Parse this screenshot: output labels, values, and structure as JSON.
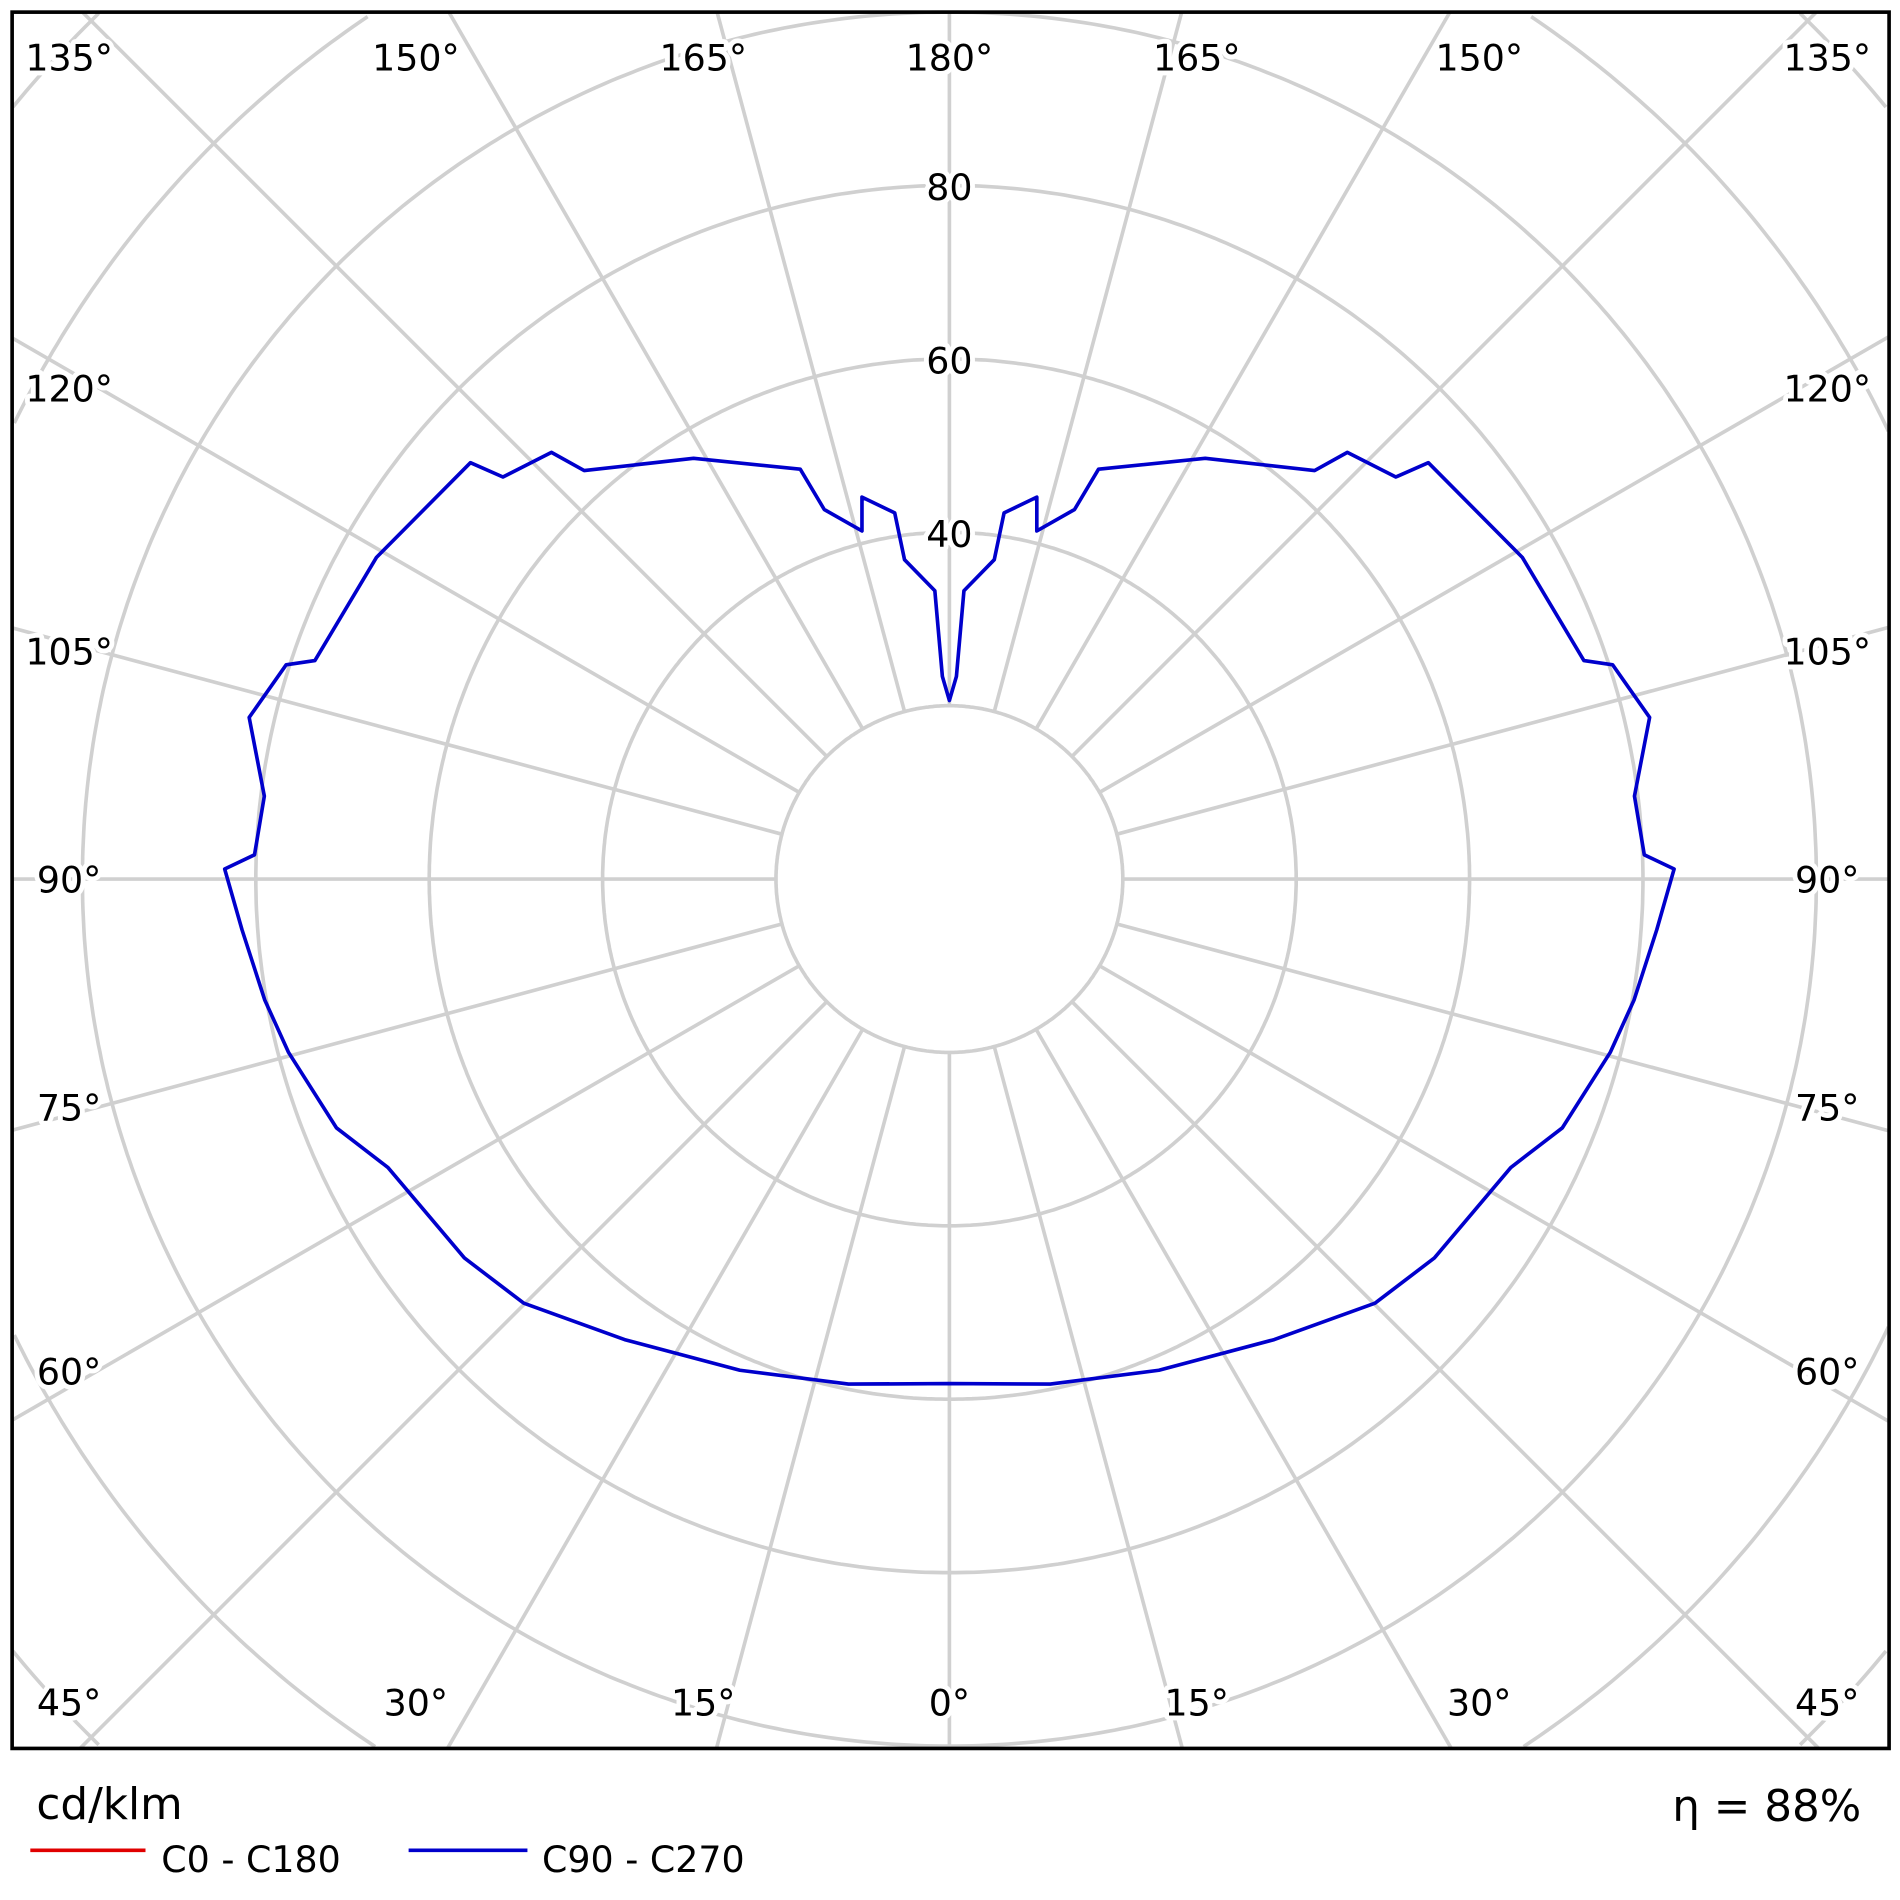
{
  "chart_data": {
    "type": "polar",
    "unit_label": "cd/klm",
    "efficiency_label": "η = 88%",
    "radial_ticks": [
      40,
      60,
      80
    ],
    "radial_grid_step": 20,
    "grid": true,
    "angle_labels_top": [
      "135°",
      "150°",
      "165°",
      "180°",
      "165°",
      "150°",
      "135°"
    ],
    "angle_labels_side": [
      "120°",
      "105°",
      "90°",
      "75°",
      "60°"
    ],
    "angle_labels_bottom": [
      "45°",
      "30°",
      "15°",
      "0°",
      "15°",
      "30°",
      "45°"
    ],
    "legend_position": "bottom-left",
    "series": [
      {
        "name": "C0 - C180",
        "color": "#e00000",
        "gamma": [],
        "values": []
      },
      {
        "name": "C90 - C270",
        "color": "#0000cc",
        "symmetric": true,
        "gamma": [
          0,
          11.3,
          23.1,
          35.2,
          45.1,
          52,
          62.8,
          67.9,
          75.3,
          80,
          85.9,
          90.8,
          92,
          96.9,
          103,
          107.9,
          109,
          119.3,
          131,
          132,
          137,
          138.2,
          148.7,
          160,
          161.3,
          165.9,
          167.1,
          171.5,
          172,
          177.1,
          178,
          180
        ],
        "values": [
          58.2,
          59.4,
          61.6,
          65.0,
          69.3,
          71.0,
          72.8,
          76.3,
          78.8,
          80.2,
          81.8,
          83.6,
          80.2,
          79.6,
          82.9,
          80.4,
          77.4,
          75.8,
          73.2,
          69.3,
          67.3,
          63.2,
          56.8,
          50.3,
          45.0,
          41.4,
          45.2,
          42.7,
          37.2,
          33.3,
          23.4,
          20.6
        ]
      }
    ]
  }
}
